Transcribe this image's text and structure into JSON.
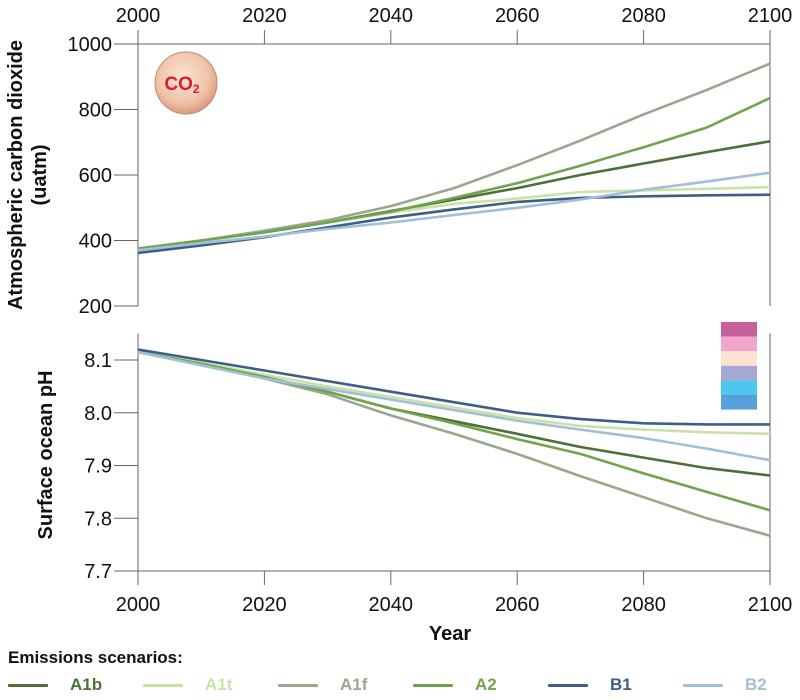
{
  "chart_data": [
    {
      "type": "line",
      "ylabel": "Atmospheric carbon dioxide\n(uatm)",
      "badge": "CO2",
      "x_ticks": [
        2000,
        2020,
        2040,
        2060,
        2080,
        2100
      ],
      "y_ticks": [
        200,
        400,
        600,
        800,
        1000
      ],
      "xlim": [
        2000,
        2100
      ],
      "ylim": [
        200,
        1000
      ],
      "series": [
        {
          "name": "A1b",
          "color": "#4e6e3a",
          "x": [
            2000,
            2010,
            2020,
            2030,
            2040,
            2050,
            2060,
            2070,
            2080,
            2090,
            2100
          ],
          "values": [
            375,
            400,
            425,
            455,
            490,
            525,
            560,
            600,
            635,
            670,
            703
          ]
        },
        {
          "name": "A1t",
          "color": "#c8e3a6",
          "x": [
            2000,
            2010,
            2020,
            2030,
            2040,
            2050,
            2060,
            2070,
            2080,
            2090,
            2100
          ],
          "values": [
            375,
            400,
            425,
            455,
            485,
            512,
            528,
            548,
            553,
            558,
            563
          ]
        },
        {
          "name": "A1f",
          "color": "#9aa78e",
          "x": [
            2000,
            2010,
            2020,
            2030,
            2040,
            2050,
            2060,
            2070,
            2080,
            2090,
            2100
          ],
          "values": [
            375,
            400,
            430,
            462,
            505,
            560,
            630,
            705,
            785,
            860,
            940
          ]
        },
        {
          "name": "A2",
          "color": "#6fa54a",
          "x": [
            2000,
            2010,
            2020,
            2030,
            2040,
            2050,
            2060,
            2070,
            2080,
            2090,
            2100
          ],
          "values": [
            375,
            400,
            425,
            455,
            488,
            530,
            575,
            628,
            685,
            745,
            835
          ]
        },
        {
          "name": "B1",
          "color": "#3f5e85",
          "x": [
            2000,
            2010,
            2020,
            2030,
            2040,
            2050,
            2060,
            2070,
            2080,
            2090,
            2100
          ],
          "values": [
            362,
            385,
            410,
            440,
            470,
            495,
            518,
            530,
            535,
            538,
            540
          ]
        },
        {
          "name": "B2",
          "color": "#a3bfd8",
          "x": [
            2000,
            2010,
            2020,
            2030,
            2040,
            2050,
            2060,
            2070,
            2080,
            2090,
            2100
          ],
          "values": [
            370,
            392,
            412,
            435,
            455,
            478,
            500,
            525,
            555,
            580,
            607
          ]
        }
      ]
    },
    {
      "type": "line",
      "xlabel": "Year",
      "ylabel": "Surface ocean pH",
      "x_ticks": [
        2000,
        2020,
        2040,
        2060,
        2080,
        2100
      ],
      "y_ticks": [
        "7.7",
        "7.8",
        "7.9",
        "8.0",
        "8.1"
      ],
      "xlim": [
        2000,
        2100
      ],
      "ylim": [
        7.7,
        8.15
      ],
      "ph_color_scale": [
        "#c4619a",
        "#f0a6c8",
        "#fde2cf",
        "#a4a8d2",
        "#4ec6ee",
        "#56a1dc"
      ],
      "series": [
        {
          "name": "A1b",
          "color": "#4e6e3a",
          "x": [
            2000,
            2010,
            2020,
            2030,
            2040,
            2050,
            2060,
            2070,
            2080,
            2090,
            2100
          ],
          "values": [
            8.115,
            8.093,
            8.068,
            8.04,
            8.008,
            7.984,
            7.96,
            7.935,
            7.915,
            7.895,
            7.881
          ]
        },
        {
          "name": "A1t",
          "color": "#c8e3a6",
          "x": [
            2000,
            2010,
            2020,
            2030,
            2040,
            2050,
            2060,
            2070,
            2080,
            2090,
            2100
          ],
          "values": [
            8.115,
            8.095,
            8.072,
            8.05,
            8.03,
            8.01,
            7.99,
            7.975,
            7.968,
            7.963,
            7.96
          ]
        },
        {
          "name": "A1f",
          "color": "#9aa78e",
          "x": [
            2000,
            2010,
            2020,
            2030,
            2040,
            2050,
            2060,
            2070,
            2080,
            2090,
            2100
          ],
          "values": [
            8.115,
            8.092,
            8.065,
            8.035,
            7.995,
            7.96,
            7.922,
            7.88,
            7.84,
            7.8,
            7.767
          ]
        },
        {
          "name": "A2",
          "color": "#6fa54a",
          "x": [
            2000,
            2010,
            2020,
            2030,
            2040,
            2050,
            2060,
            2070,
            2080,
            2090,
            2100
          ],
          "values": [
            8.115,
            8.093,
            8.068,
            8.04,
            8.008,
            7.98,
            7.95,
            7.922,
            7.885,
            7.85,
            7.815
          ]
        },
        {
          "name": "B1",
          "color": "#3f5e85",
          "x": [
            2000,
            2010,
            2020,
            2030,
            2040,
            2050,
            2060,
            2070,
            2080,
            2090,
            2100
          ],
          "values": [
            8.12,
            8.1,
            8.08,
            8.06,
            8.04,
            8.02,
            8.0,
            7.988,
            7.98,
            7.978,
            7.978
          ]
        },
        {
          "name": "B2",
          "color": "#a3bfd8",
          "x": [
            2000,
            2010,
            2020,
            2030,
            2040,
            2050,
            2060,
            2070,
            2080,
            2090,
            2100
          ],
          "values": [
            8.115,
            8.09,
            8.065,
            8.045,
            8.025,
            8.005,
            7.985,
            7.968,
            7.952,
            7.932,
            7.91
          ]
        }
      ]
    }
  ],
  "legend": {
    "title": "Emissions scenarios:",
    "items": [
      {
        "label": "A1b",
        "color": "#4e6e3a"
      },
      {
        "label": "A1t",
        "color": "#c8e3a6"
      },
      {
        "label": "A1f",
        "color": "#9aa78e"
      },
      {
        "label": "A2",
        "color": "#6fa54a"
      },
      {
        "label": "B1",
        "color": "#3f5e85"
      },
      {
        "label": "B2",
        "color": "#a3bfd8"
      }
    ]
  }
}
